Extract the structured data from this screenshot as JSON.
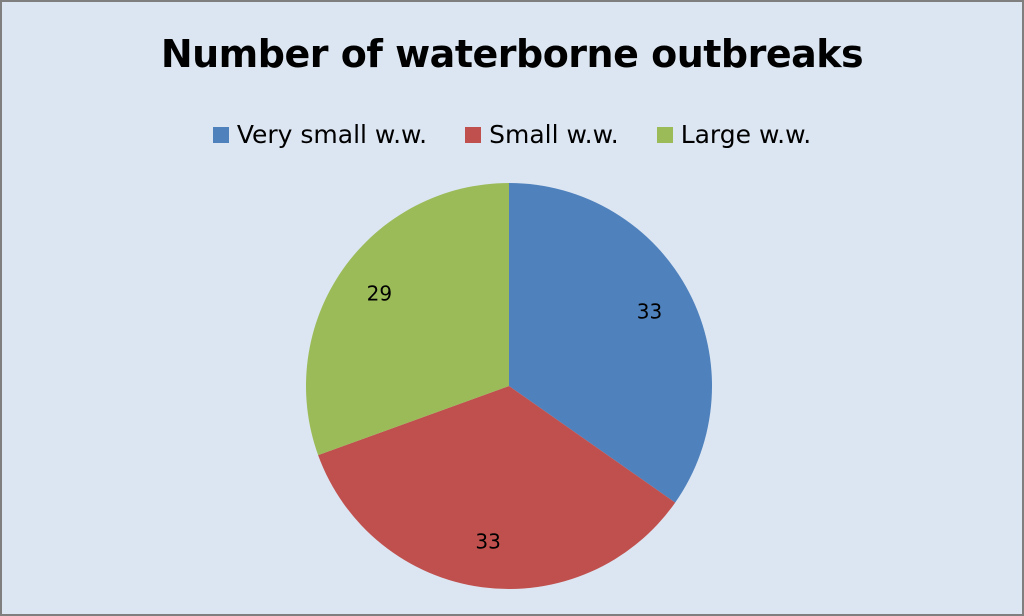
{
  "chart_data": {
    "type": "pie",
    "title": "Number of waterborne outbreaks",
    "categories": [
      "Very small w.w.",
      "Small w.w.",
      "Large w.w."
    ],
    "values": [
      33,
      33,
      29
    ],
    "colors": [
      "#4f81bd",
      "#c0504d",
      "#9bbb59"
    ],
    "legend_position": "top",
    "start_angle": "12 o'clock, clockwise"
  },
  "chart_background": "#dce6f2",
  "chart_border": "#7f7f7f"
}
